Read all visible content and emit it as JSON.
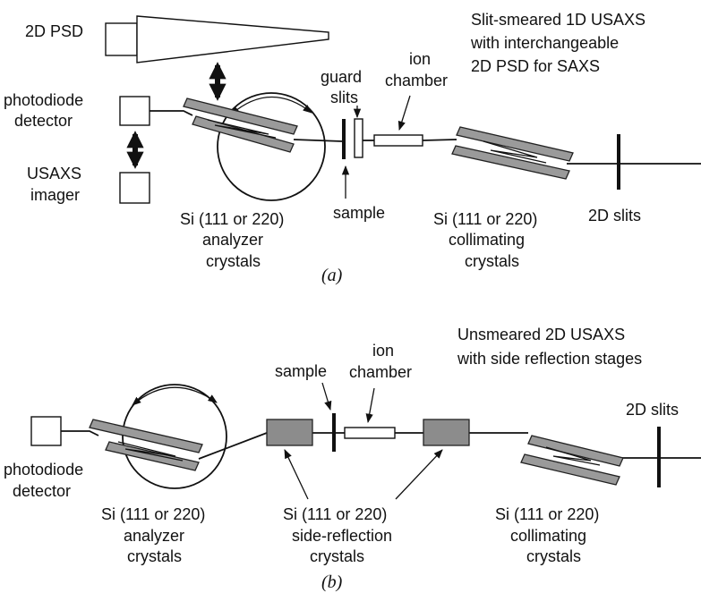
{
  "panel_a": {
    "title_lines": [
      "Slit-smeared 1D USAXS",
      "with interchangeable",
      "2D PSD for SAXS"
    ],
    "psd_label": "2D PSD",
    "photodiode_lines": [
      "photodiode",
      "detector"
    ],
    "imager_lines": [
      "USAXS",
      "imager"
    ],
    "guard_slits_lines": [
      "guard",
      "slits"
    ],
    "ion_chamber_lines": [
      "ion",
      "chamber"
    ],
    "sample_label": "sample",
    "analyzer_lines": [
      "Si (111 or 220)",
      "analyzer",
      "crystals"
    ],
    "collimating_lines": [
      "Si (111 or 220)",
      "collimating",
      "crystals"
    ],
    "slits_label": "2D slits",
    "caption": "(a)"
  },
  "panel_b": {
    "title_lines": [
      "Unsmeared 2D USAXS",
      "with side reflection stages"
    ],
    "sample_label": "sample",
    "ion_chamber_lines": [
      "ion",
      "chamber"
    ],
    "slits_label": "2D slits",
    "photodiode_lines": [
      "photodiode",
      "detector"
    ],
    "analyzer_lines": [
      "Si (111 or 220)",
      "analyzer",
      "crystals"
    ],
    "side_reflection_lines": [
      "Si (111 or 220)",
      "side-reflection",
      "crystals"
    ],
    "collimating_lines": [
      "Si (111 or 220)",
      "collimating",
      "crystals"
    ],
    "caption": "(b)"
  }
}
